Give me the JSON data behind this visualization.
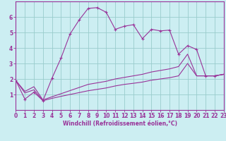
{
  "xlabel": "Windchill (Refroidissement éolien,°C)",
  "bg_color": "#cceef2",
  "line_color": "#993399",
  "grid_color": "#99cccc",
  "xlim": [
    0,
    23
  ],
  "ylim": [
    0,
    7
  ],
  "xticks": [
    0,
    1,
    2,
    3,
    4,
    5,
    6,
    7,
    8,
    9,
    10,
    11,
    12,
    13,
    14,
    15,
    16,
    17,
    18,
    19,
    20,
    21,
    22,
    23
  ],
  "yticks": [
    1,
    2,
    3,
    4,
    5,
    6
  ],
  "line1_x": [
    0,
    1,
    2,
    3,
    4,
    5,
    6,
    7,
    8,
    9,
    10,
    11,
    12,
    13,
    14,
    15,
    16,
    17,
    18,
    19,
    20,
    21,
    22,
    23
  ],
  "line1_y": [
    1.9,
    0.7,
    1.15,
    0.6,
    2.05,
    3.35,
    4.9,
    5.8,
    6.55,
    6.6,
    6.3,
    5.2,
    5.4,
    5.5,
    4.6,
    5.2,
    5.1,
    5.15,
    3.6,
    4.15,
    3.9,
    2.2,
    2.2,
    2.3
  ],
  "line2_x": [
    0,
    1,
    2,
    3,
    4,
    5,
    6,
    7,
    8,
    9,
    10,
    11,
    12,
    13,
    14,
    15,
    16,
    17,
    18,
    19,
    20,
    21,
    22,
    23
  ],
  "line2_y": [
    1.9,
    1.2,
    1.5,
    0.65,
    0.85,
    1.05,
    1.25,
    1.45,
    1.65,
    1.75,
    1.85,
    2.0,
    2.1,
    2.2,
    2.3,
    2.45,
    2.55,
    2.65,
    2.8,
    3.6,
    2.2,
    2.2,
    2.2,
    2.3
  ],
  "line3_x": [
    0,
    1,
    2,
    3,
    4,
    5,
    6,
    7,
    8,
    9,
    10,
    11,
    12,
    13,
    14,
    15,
    16,
    17,
    18,
    19,
    20,
    21,
    22,
    23
  ],
  "line3_y": [
    1.9,
    1.1,
    1.3,
    0.6,
    0.75,
    0.88,
    1.0,
    1.12,
    1.24,
    1.33,
    1.42,
    1.55,
    1.65,
    1.72,
    1.8,
    1.92,
    2.0,
    2.08,
    2.2,
    3.0,
    2.2,
    2.2,
    2.2,
    2.3
  ]
}
